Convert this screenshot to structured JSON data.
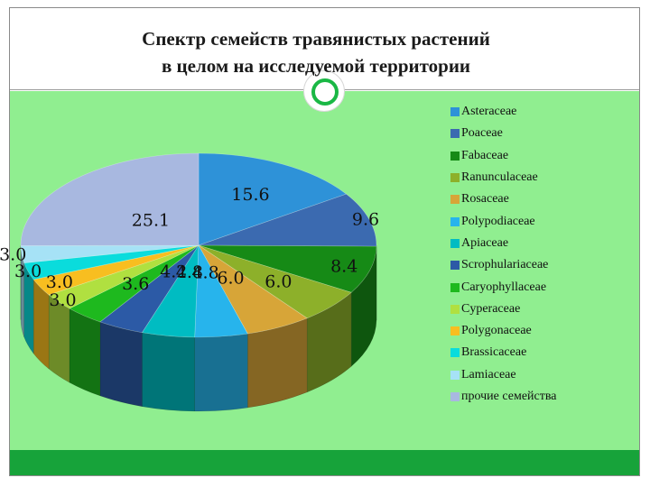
{
  "title_lines": [
    "Спектр семейств травянистых растений",
    "в целом на исследуемой территории"
  ],
  "chart_data": {
    "type": "pie",
    "title": "Спектр семейств травянистых растений в целом на исследуемой территории",
    "legend_position": "right",
    "categories": [
      "Asteraceae",
      "Poaceae",
      "Fabaceae",
      "Ranunculaceae",
      "Rosaceae",
      "Polypodiaceae",
      "Apiaceae",
      "Scrophulariaceae",
      "Caryophyllaceae",
      "Cyperaceae",
      "Polygonaceae",
      "Brassicaceae",
      "Lamiaceae",
      "прочие семейства"
    ],
    "values": [
      15.6,
      9.6,
      8.4,
      6.0,
      6.0,
      4.8,
      4.8,
      4.2,
      3.6,
      3.0,
      3.0,
      3.0,
      3.0,
      25.1
    ],
    "value_labels": [
      "15.6",
      "9.6",
      "8.4",
      "6.0",
      "6.0",
      "4.8",
      "4.8",
      "4.2",
      "3.6",
      "3.0",
      "3.0",
      "3.0",
      "3.0",
      "25.1"
    ],
    "colors": [
      "#2e92d8",
      "#3b6ab0",
      "#168a16",
      "#8db02a",
      "#d7a538",
      "#27b4ec",
      "#00bcc2",
      "#2c5aa6",
      "#1eb91e",
      "#b0e040",
      "#f8be20",
      "#0adcdc",
      "#a6e2f6",
      "#a8b8e0"
    ]
  }
}
